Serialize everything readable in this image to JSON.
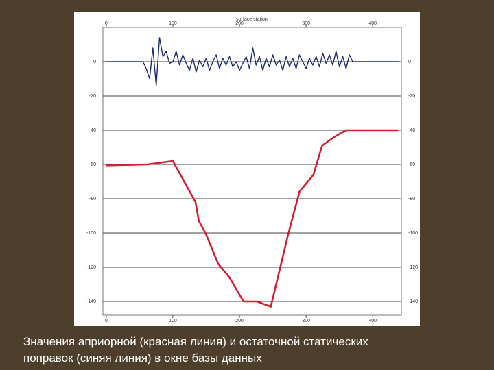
{
  "chart_data": {
    "type": "line",
    "top_axis_label": "surface station",
    "xlim": [
      -5,
      443
    ],
    "xticks": [
      0,
      100,
      200,
      300,
      400
    ],
    "ylim": [
      -148,
      20
    ],
    "yticks": [
      0,
      -20,
      -40,
      -60,
      -80,
      -100,
      -120,
      -140
    ],
    "grid": true,
    "series": [
      {
        "color": "#1c2a6e",
        "x": [
          0,
          5,
          10,
          15,
          20,
          25,
          30,
          35,
          40,
          45,
          50,
          55,
          60,
          65,
          70,
          75,
          80,
          85,
          90,
          95,
          100,
          105,
          110,
          115,
          120,
          125,
          130,
          135,
          140,
          145,
          150,
          155,
          160,
          165,
          170,
          175,
          180,
          185,
          190,
          195,
          200,
          205,
          210,
          215,
          220,
          225,
          230,
          235,
          240,
          245,
          250,
          255,
          260,
          265,
          270,
          275,
          280,
          285,
          290,
          295,
          300,
          305,
          310,
          315,
          320,
          325,
          330,
          335,
          340,
          345,
          350,
          355,
          360,
          365,
          370,
          375,
          380,
          385,
          390,
          395,
          400,
          405,
          410,
          415,
          420,
          425,
          430,
          435,
          440
        ],
        "values": [
          0,
          0,
          0,
          0,
          0,
          0,
          0,
          0,
          0,
          0,
          0,
          0,
          -4,
          -10,
          8,
          -14,
          14,
          3,
          6,
          -1,
          0,
          6,
          -2,
          4,
          -1,
          -5,
          2,
          -6,
          1,
          -3,
          2,
          -5,
          0,
          4,
          -4,
          2,
          -2,
          3,
          -3,
          0,
          -5,
          -1,
          3,
          -4,
          8,
          -2,
          3,
          -5,
          2,
          -3,
          4,
          -2,
          1,
          -5,
          3,
          -3,
          2,
          -4,
          4,
          0,
          -4,
          2,
          -2,
          3,
          -3,
          5,
          -1,
          4,
          -2,
          6,
          -3,
          3,
          -4,
          4,
          0,
          0,
          0,
          0,
          0,
          0,
          0,
          0,
          0,
          0,
          0,
          0,
          0,
          0,
          0
        ]
      },
      {
        "color": "#d02030",
        "x": [
          0,
          62,
          100,
          134,
          139,
          149,
          168,
          185,
          206,
          226,
          247,
          273,
          290,
          311,
          324,
          342,
          360,
          438
        ],
        "values": [
          -60.5,
          -60,
          -58,
          -82,
          -93,
          -100,
          -118,
          -126,
          -140,
          -140,
          -143,
          -101,
          -76,
          -66,
          -49,
          -44,
          -40,
          -40
        ]
      }
    ]
  },
  "caption": [
    "Значения априорной (красная линия) и остаточной статических",
    "поправок (синяя линия) в окне базы данных"
  ]
}
